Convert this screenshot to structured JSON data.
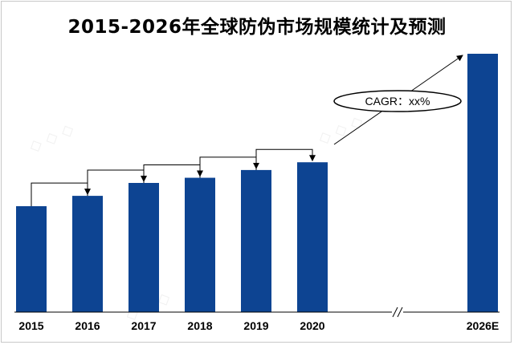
{
  "chart_data": {
    "type": "bar",
    "title": "2015-2026年全球防伪市场规模统计及预测",
    "categories": [
      "2015",
      "2016",
      "2017",
      "2018",
      "2019",
      "2020",
      "2026E"
    ],
    "values": [
      41,
      45,
      50,
      52,
      55,
      58,
      100
    ],
    "ylim": [
      0,
      100
    ],
    "grid": false,
    "legend": "none",
    "bar_color": "#0d4492",
    "annotation": "CAGR：xx%",
    "axis_break": "//"
  }
}
